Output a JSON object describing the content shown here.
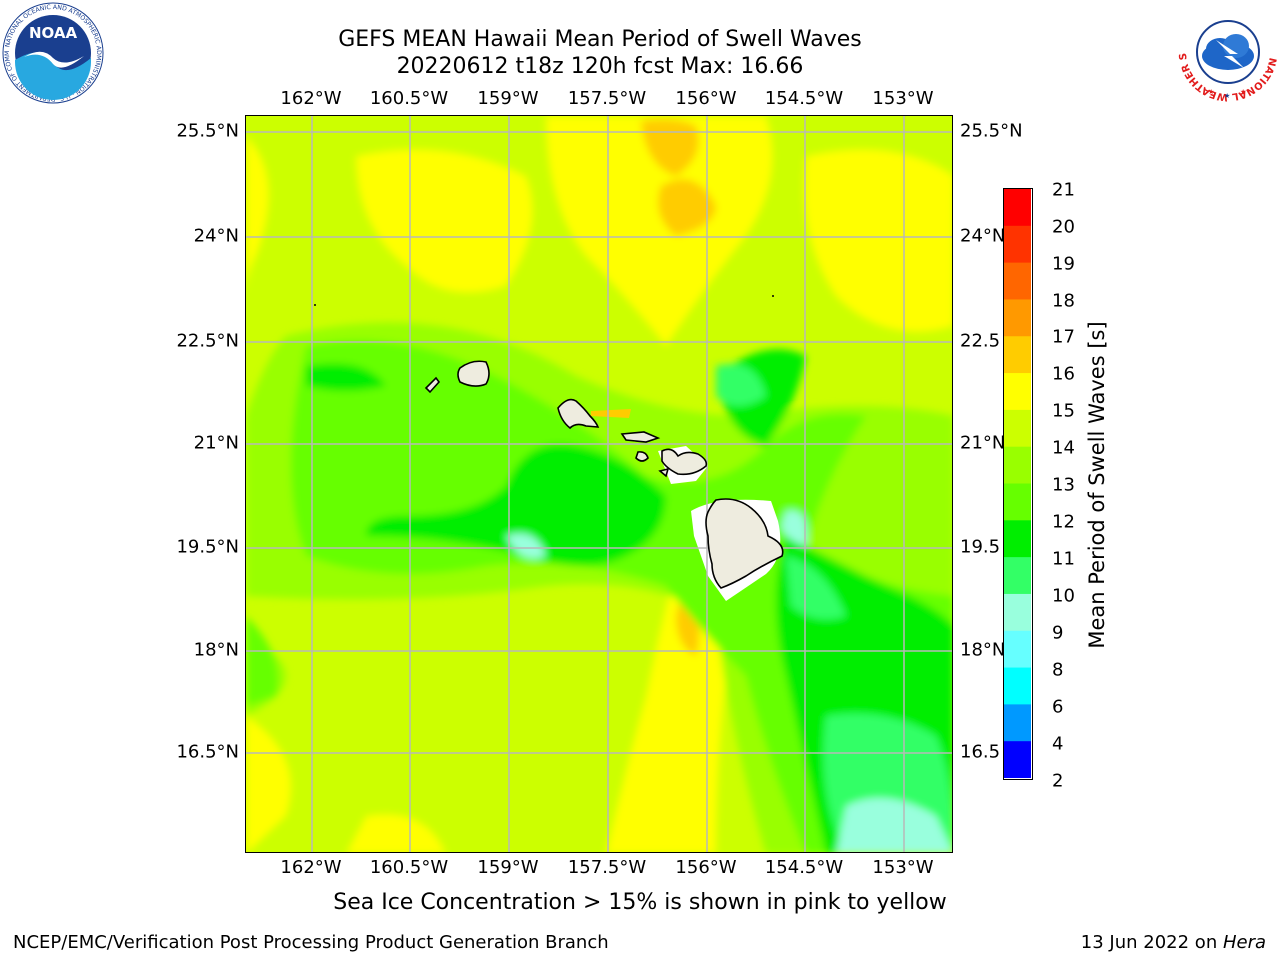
{
  "header": {
    "title_line1": "GEFS MEAN Hawaii Mean Period of Swell Waves",
    "title_line2": "20220612 t18z 120h fcst   Max: 16.66"
  },
  "map": {
    "lon_ticks": [
      "162°W",
      "160.5°W",
      "159°W",
      "157.5°W",
      "156°W",
      "154.5°W",
      "153°W"
    ],
    "lat_ticks": [
      "25.5°N",
      "24°N",
      "22.5°N",
      "21°N",
      "19.5°N",
      "18°N",
      "16.5°N"
    ],
    "right_lat_ticks": [
      "25.5°N",
      "24°N",
      "22.5",
      "21°N",
      "19.5",
      "18°N",
      "16.5"
    ],
    "land_color": "#eeecdf",
    "grid_color": "#b8b8b8"
  },
  "colorbar": {
    "title": "Mean Period of Swell Waves [s]",
    "labels": [
      "21",
      "20",
      "19",
      "18",
      "17",
      "16",
      "15",
      "14",
      "13",
      "12",
      "11",
      "10",
      "9",
      "8",
      "6",
      "4",
      "2"
    ],
    "colors": [
      "#ff0000",
      "#ff3300",
      "#ff6600",
      "#ff9900",
      "#ffcc00",
      "#ffff00",
      "#ccff00",
      "#99ff00",
      "#66ff00",
      "#00ee00",
      "#33ff66",
      "#99ffdd",
      "#66ffff",
      "#00ffff",
      "#0099ff",
      "#0000ff"
    ]
  },
  "footer": {
    "note": "Sea Ice Concentration > 15% is shown in pink to yellow",
    "credit": "NCEP/EMC/Verification Post Processing Product Generation Branch",
    "date": "13 Jun 2022 on ",
    "machine": "Hera"
  },
  "logos": {
    "noaa_text": "NOAA",
    "noaa_ring": "NATIONAL OCEANIC AND ATMOSPHERIC ADMINISTRATION · U.S. DEPARTMENT OF COMMERCE",
    "nws_ring": "NATIONAL WEATHER SERVICE"
  }
}
